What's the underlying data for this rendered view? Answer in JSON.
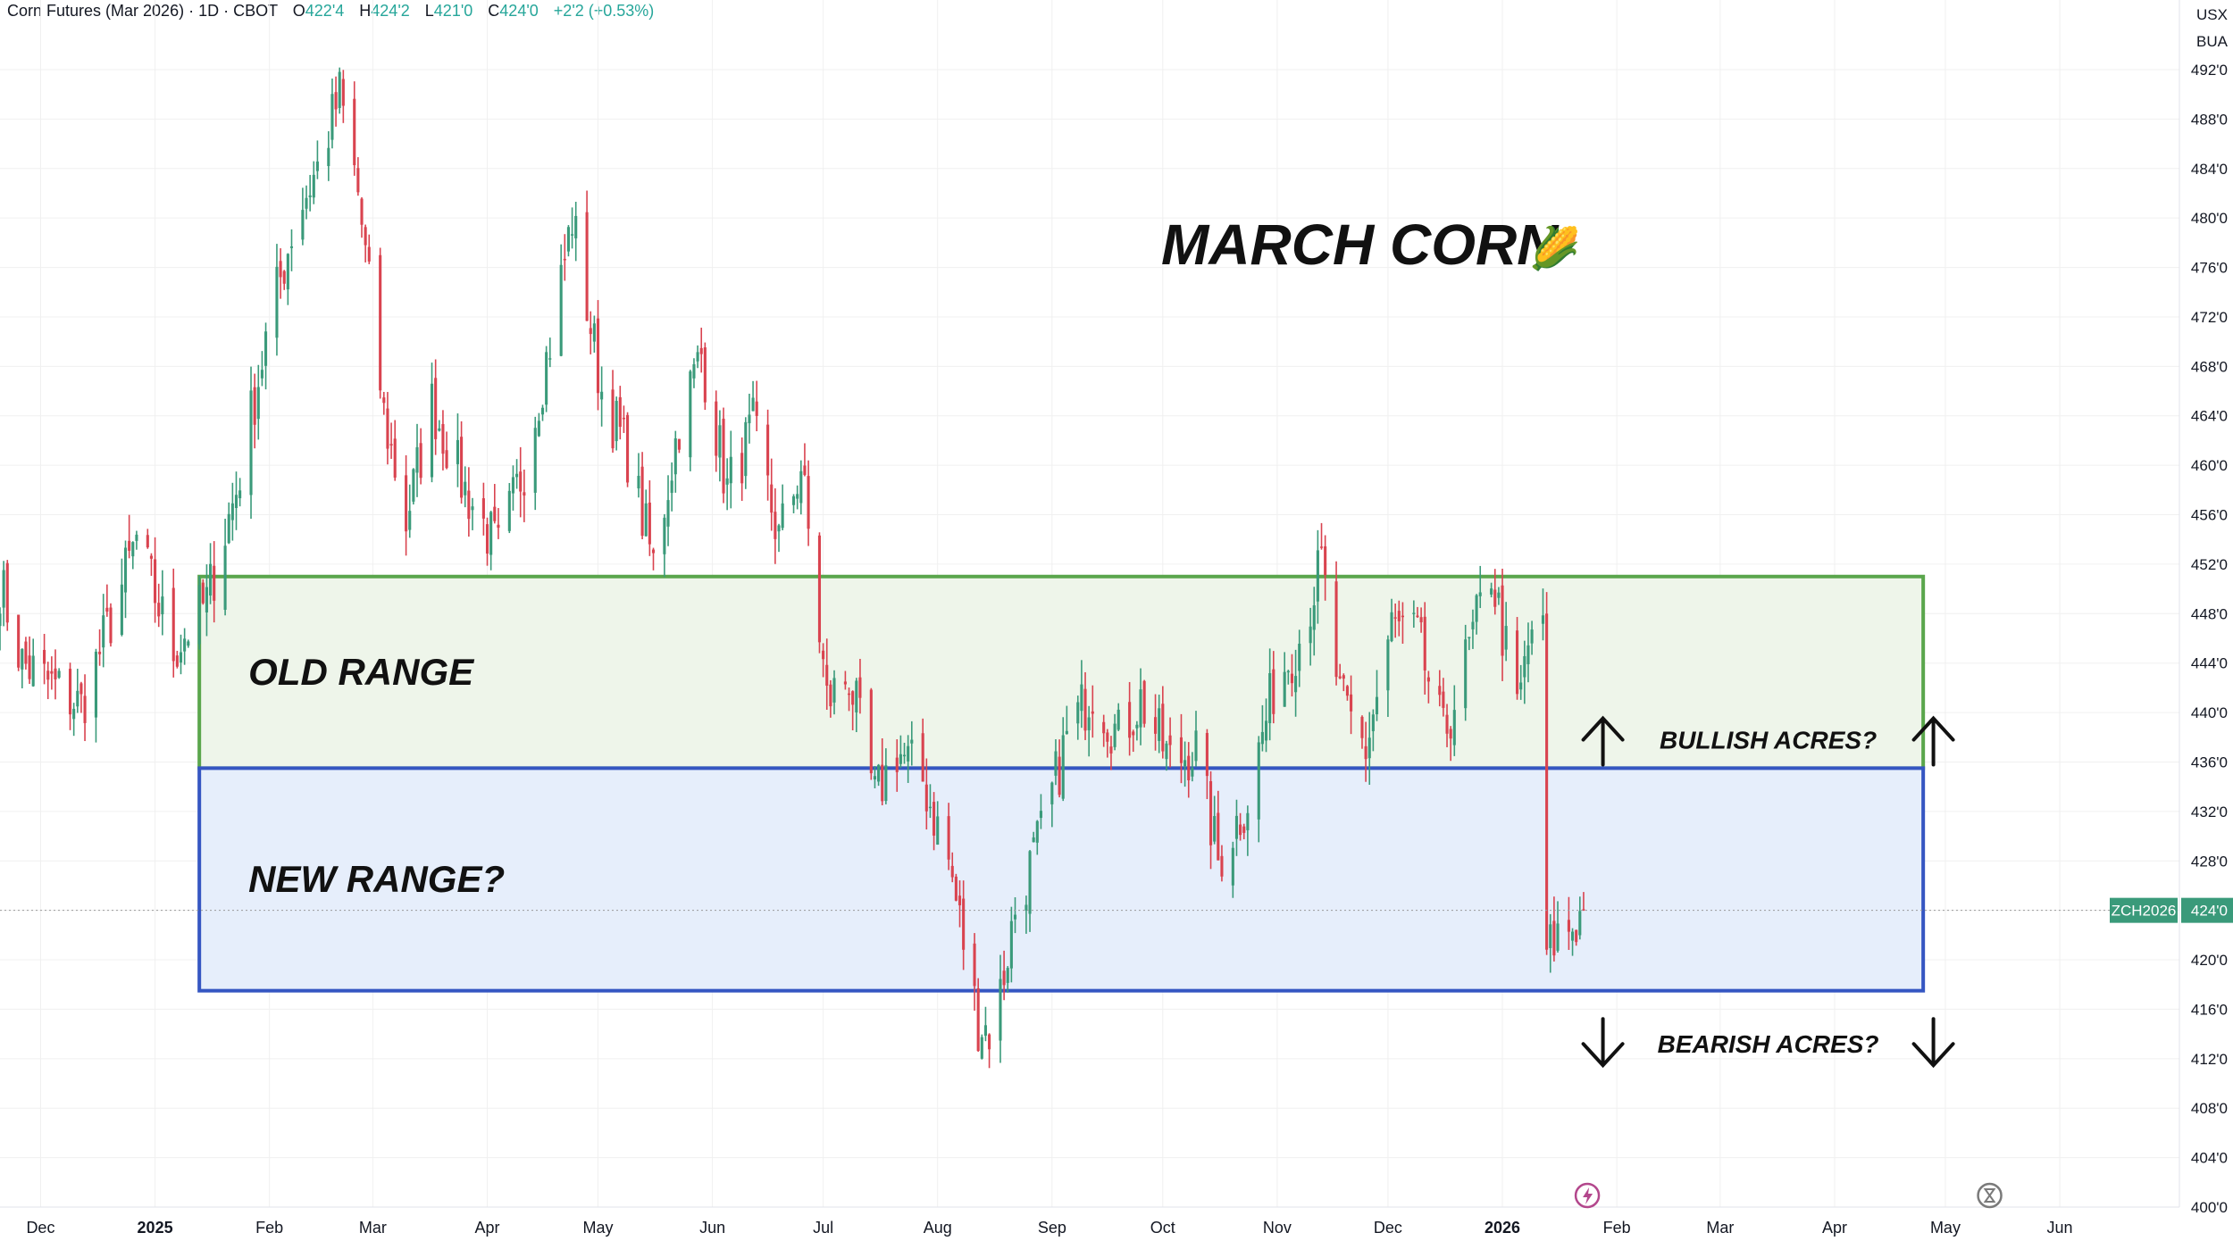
{
  "header": {
    "symbol": "Corn Futures (Mar 2026) · 1D · CBOT",
    "open_label": "O",
    "open": "422'4",
    "high_label": "H",
    "high": "424'2",
    "low_label": "L",
    "low": "421'0",
    "close_label": "C",
    "close": "424'0",
    "change": "+2'2 (+0.53%)"
  },
  "price_axis": {
    "currency": "USX",
    "unit": "BUA"
  },
  "colors": {
    "up": "#3a9a7a",
    "down": "#d9434f",
    "old_range_border": "#5aa64c",
    "old_range_fill": "#eef5ea",
    "new_range_border": "#3556c2",
    "new_range_fill": "#e6eefb",
    "price_tag": "#3a9a7a",
    "grid": "#f0f0f0"
  },
  "icons": {
    "flash": "flash-icon",
    "hourglass": "hourglass-icon"
  },
  "chart_data": {
    "type": "candlestick",
    "title": "MARCH CORN",
    "title_emoji": "🌽",
    "ylim": [
      400,
      494
    ],
    "y_ticks": [
      "492'0",
      "488'0",
      "484'0",
      "480'0",
      "476'0",
      "472'0",
      "468'0",
      "464'0",
      "460'0",
      "456'0",
      "452'0",
      "448'0",
      "444'0",
      "440'0",
      "436'0",
      "432'0",
      "428'0",
      "424'0",
      "420'0",
      "416'0",
      "412'0",
      "408'0",
      "404'0",
      "400'0"
    ],
    "x_ticks": [
      {
        "label": "Dec",
        "date": "2024-12-01",
        "bold": false
      },
      {
        "label": "2025",
        "date": "2025-01-01",
        "bold": true
      },
      {
        "label": "Feb",
        "date": "2025-02-01",
        "bold": false
      },
      {
        "label": "Mar",
        "date": "2025-03-01",
        "bold": false
      },
      {
        "label": "Apr",
        "date": "2025-04-01",
        "bold": false
      },
      {
        "label": "May",
        "date": "2025-05-01",
        "bold": false
      },
      {
        "label": "Jun",
        "date": "2025-06-01",
        "bold": false
      },
      {
        "label": "Jul",
        "date": "2025-07-01",
        "bold": false
      },
      {
        "label": "Aug",
        "date": "2025-08-01",
        "bold": false
      },
      {
        "label": "Sep",
        "date": "2025-09-01",
        "bold": false
      },
      {
        "label": "Oct",
        "date": "2025-10-01",
        "bold": false
      },
      {
        "label": "Nov",
        "date": "2025-11-01",
        "bold": false
      },
      {
        "label": "Dec",
        "date": "2025-12-01",
        "bold": false
      },
      {
        "label": "2026",
        "date": "2026-01-01",
        "bold": true
      },
      {
        "label": "Feb",
        "date": "2026-02-01",
        "bold": false
      },
      {
        "label": "Mar",
        "date": "2026-03-01",
        "bold": false
      },
      {
        "label": "Apr",
        "date": "2026-04-01",
        "bold": false
      },
      {
        "label": "May",
        "date": "2026-05-01",
        "bold": false
      },
      {
        "label": "Jun",
        "date": "2026-06-01",
        "bold": false
      }
    ],
    "last_price": {
      "symbol": "ZCH2026",
      "value": 424,
      "label": "424'0"
    },
    "old_range": {
      "label": "OLD RANGE",
      "from": 435.5,
      "to": 451,
      "start": "2025-01-13",
      "end": "2026-04-25"
    },
    "new_range": {
      "label": "NEW RANGE?",
      "from": 417.5,
      "to": 435.5,
      "start": "2025-01-13",
      "end": "2026-04-25"
    },
    "annotations": [
      {
        "text": "BULLISH ACRES?",
        "direction": "up",
        "date": "2026-03-14",
        "price": 437.8
      },
      {
        "text": "BEARISH ACRES?",
        "direction": "down",
        "date": "2026-03-14",
        "price": 413.2
      }
    ],
    "close_anchors": [
      [
        "2024-11-20",
        450.5
      ],
      [
        "2024-11-26",
        444
      ],
      [
        "2024-12-05",
        442
      ],
      [
        "2024-12-12",
        440.5
      ],
      [
        "2024-12-20",
        447.5
      ],
      [
        "2024-12-27",
        454
      ],
      [
        "2025-01-06",
        445
      ],
      [
        "2025-01-15",
        449
      ],
      [
        "2025-01-23",
        458
      ],
      [
        "2025-02-01",
        471.5
      ],
      [
        "2025-02-08",
        480
      ],
      [
        "2025-02-14",
        484
      ],
      [
        "2025-02-20",
        490
      ],
      [
        "2025-02-25",
        482
      ],
      [
        "2025-03-04",
        464
      ],
      [
        "2025-03-10",
        455.5
      ],
      [
        "2025-03-17",
        465
      ],
      [
        "2025-03-26",
        458
      ],
      [
        "2025-04-04",
        453
      ],
      [
        "2025-04-11",
        460
      ],
      [
        "2025-04-18",
        470
      ],
      [
        "2025-04-24",
        480
      ],
      [
        "2025-05-02",
        466
      ],
      [
        "2025-05-09",
        461
      ],
      [
        "2025-05-16",
        452
      ],
      [
        "2025-05-23",
        463.5
      ],
      [
        "2025-05-29",
        469
      ],
      [
        "2025-06-05",
        458
      ],
      [
        "2025-06-12",
        463
      ],
      [
        "2025-06-19",
        454
      ],
      [
        "2025-06-25",
        460
      ],
      [
        "2025-07-02",
        441
      ],
      [
        "2025-07-08",
        443
      ],
      [
        "2025-07-15",
        433
      ],
      [
        "2025-07-21",
        437
      ],
      [
        "2025-07-28",
        434.5
      ],
      [
        "2025-08-04",
        428
      ],
      [
        "2025-08-12",
        415
      ],
      [
        "2025-08-16",
        414
      ],
      [
        "2025-08-22",
        424
      ],
      [
        "2025-08-29",
        430
      ],
      [
        "2025-09-05",
        438
      ],
      [
        "2025-09-12",
        442
      ],
      [
        "2025-09-19",
        438
      ],
      [
        "2025-09-25",
        441
      ],
      [
        "2025-10-03",
        436
      ],
      [
        "2025-10-10",
        437
      ],
      [
        "2025-10-16",
        428
      ],
      [
        "2025-10-24",
        433
      ],
      [
        "2025-10-31",
        442
      ],
      [
        "2025-11-07",
        446
      ],
      [
        "2025-11-13",
        452
      ],
      [
        "2025-11-18",
        441
      ],
      [
        "2025-11-25",
        437
      ],
      [
        "2025-12-02",
        447
      ],
      [
        "2025-12-09",
        446
      ],
      [
        "2025-12-16",
        438
      ],
      [
        "2025-12-22",
        444
      ],
      [
        "2025-12-29",
        451.5
      ],
      [
        "2026-01-05",
        440
      ],
      [
        "2026-01-09",
        447
      ],
      [
        "2026-01-12",
        446
      ],
      [
        "2026-01-13",
        420.5
      ],
      [
        "2026-01-16",
        422
      ],
      [
        "2026-01-21",
        423
      ],
      [
        "2026-01-23",
        424
      ]
    ]
  }
}
